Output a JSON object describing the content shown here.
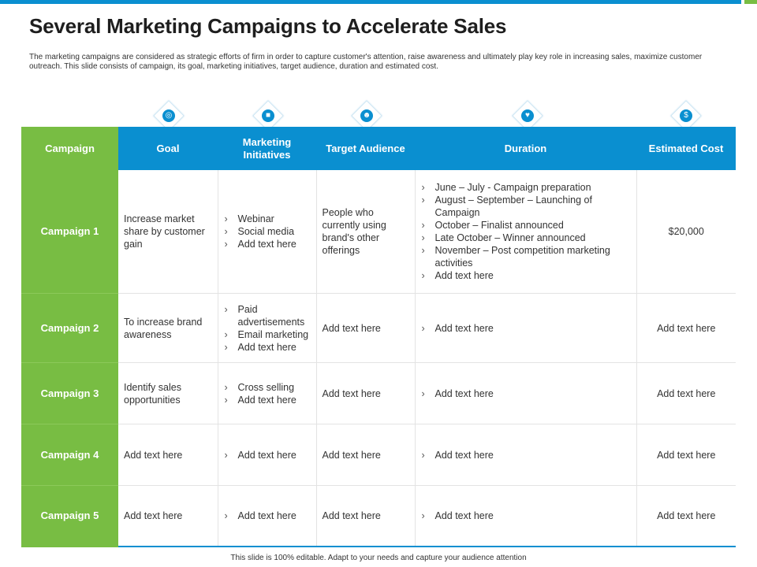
{
  "slide": {
    "title": "Several Marketing Campaigns to Accelerate Sales",
    "subtitle": "The marketing campaigns are considered as strategic efforts of firm in order to capture customer's attention, raise awareness and ultimately play key role in increasing sales, maximize customer outreach. This slide consists of campaign, its goal, marketing initiatives, target audience, duration and estimated cost.",
    "footer": "This slide is 100% editable. Adapt to your needs and capture your audience attention"
  },
  "colors": {
    "accent_blue": "#0a8fd0",
    "accent_green": "#78bd43"
  },
  "icons": [
    "target-icon",
    "presentation-icon",
    "audience-icon",
    "handshake-icon",
    "money-bag-icon"
  ],
  "table": {
    "headers": [
      "Campaign",
      "Goal",
      "Marketing Initiatives",
      "Target Audience",
      "Duration",
      "Estimated Cost"
    ],
    "rows": [
      {
        "campaign": "Campaign 1",
        "goal": "Increase market share by customer gain",
        "initiatives": [
          "Webinar",
          "Social media",
          "Add text here"
        ],
        "audience": "People who currently using brand's other offerings",
        "duration": [
          "June – July - Campaign preparation",
          "August – September – Launching of Campaign",
          "October –  Finalist announced",
          "Late October – Winner announced",
          "November  – Post competition marketing activities",
          "Add text here"
        ],
        "cost": "$20,000"
      },
      {
        "campaign": "Campaign 2",
        "goal": "To increase brand awareness",
        "initiatives": [
          "Paid advertisements",
          "Email marketing",
          "Add text here"
        ],
        "audience": "Add text here",
        "duration": [
          "Add text here"
        ],
        "cost": "Add text here"
      },
      {
        "campaign": "Campaign 3",
        "goal": "Identify sales opportunities",
        "initiatives": [
          "Cross selling",
          "Add text here"
        ],
        "audience": "Add text here",
        "duration": [
          "Add text here"
        ],
        "cost": "Add text here"
      },
      {
        "campaign": "Campaign 4",
        "goal": "Add text here",
        "initiatives": [
          "Add text here"
        ],
        "audience": "Add text here",
        "duration": [
          "Add text here"
        ],
        "cost": "Add text here"
      },
      {
        "campaign": "Campaign 5",
        "goal": "Add text here",
        "initiatives": [
          "Add text here"
        ],
        "audience": "Add text here",
        "duration": [
          "Add text here"
        ],
        "cost": "Add text here"
      }
    ]
  }
}
